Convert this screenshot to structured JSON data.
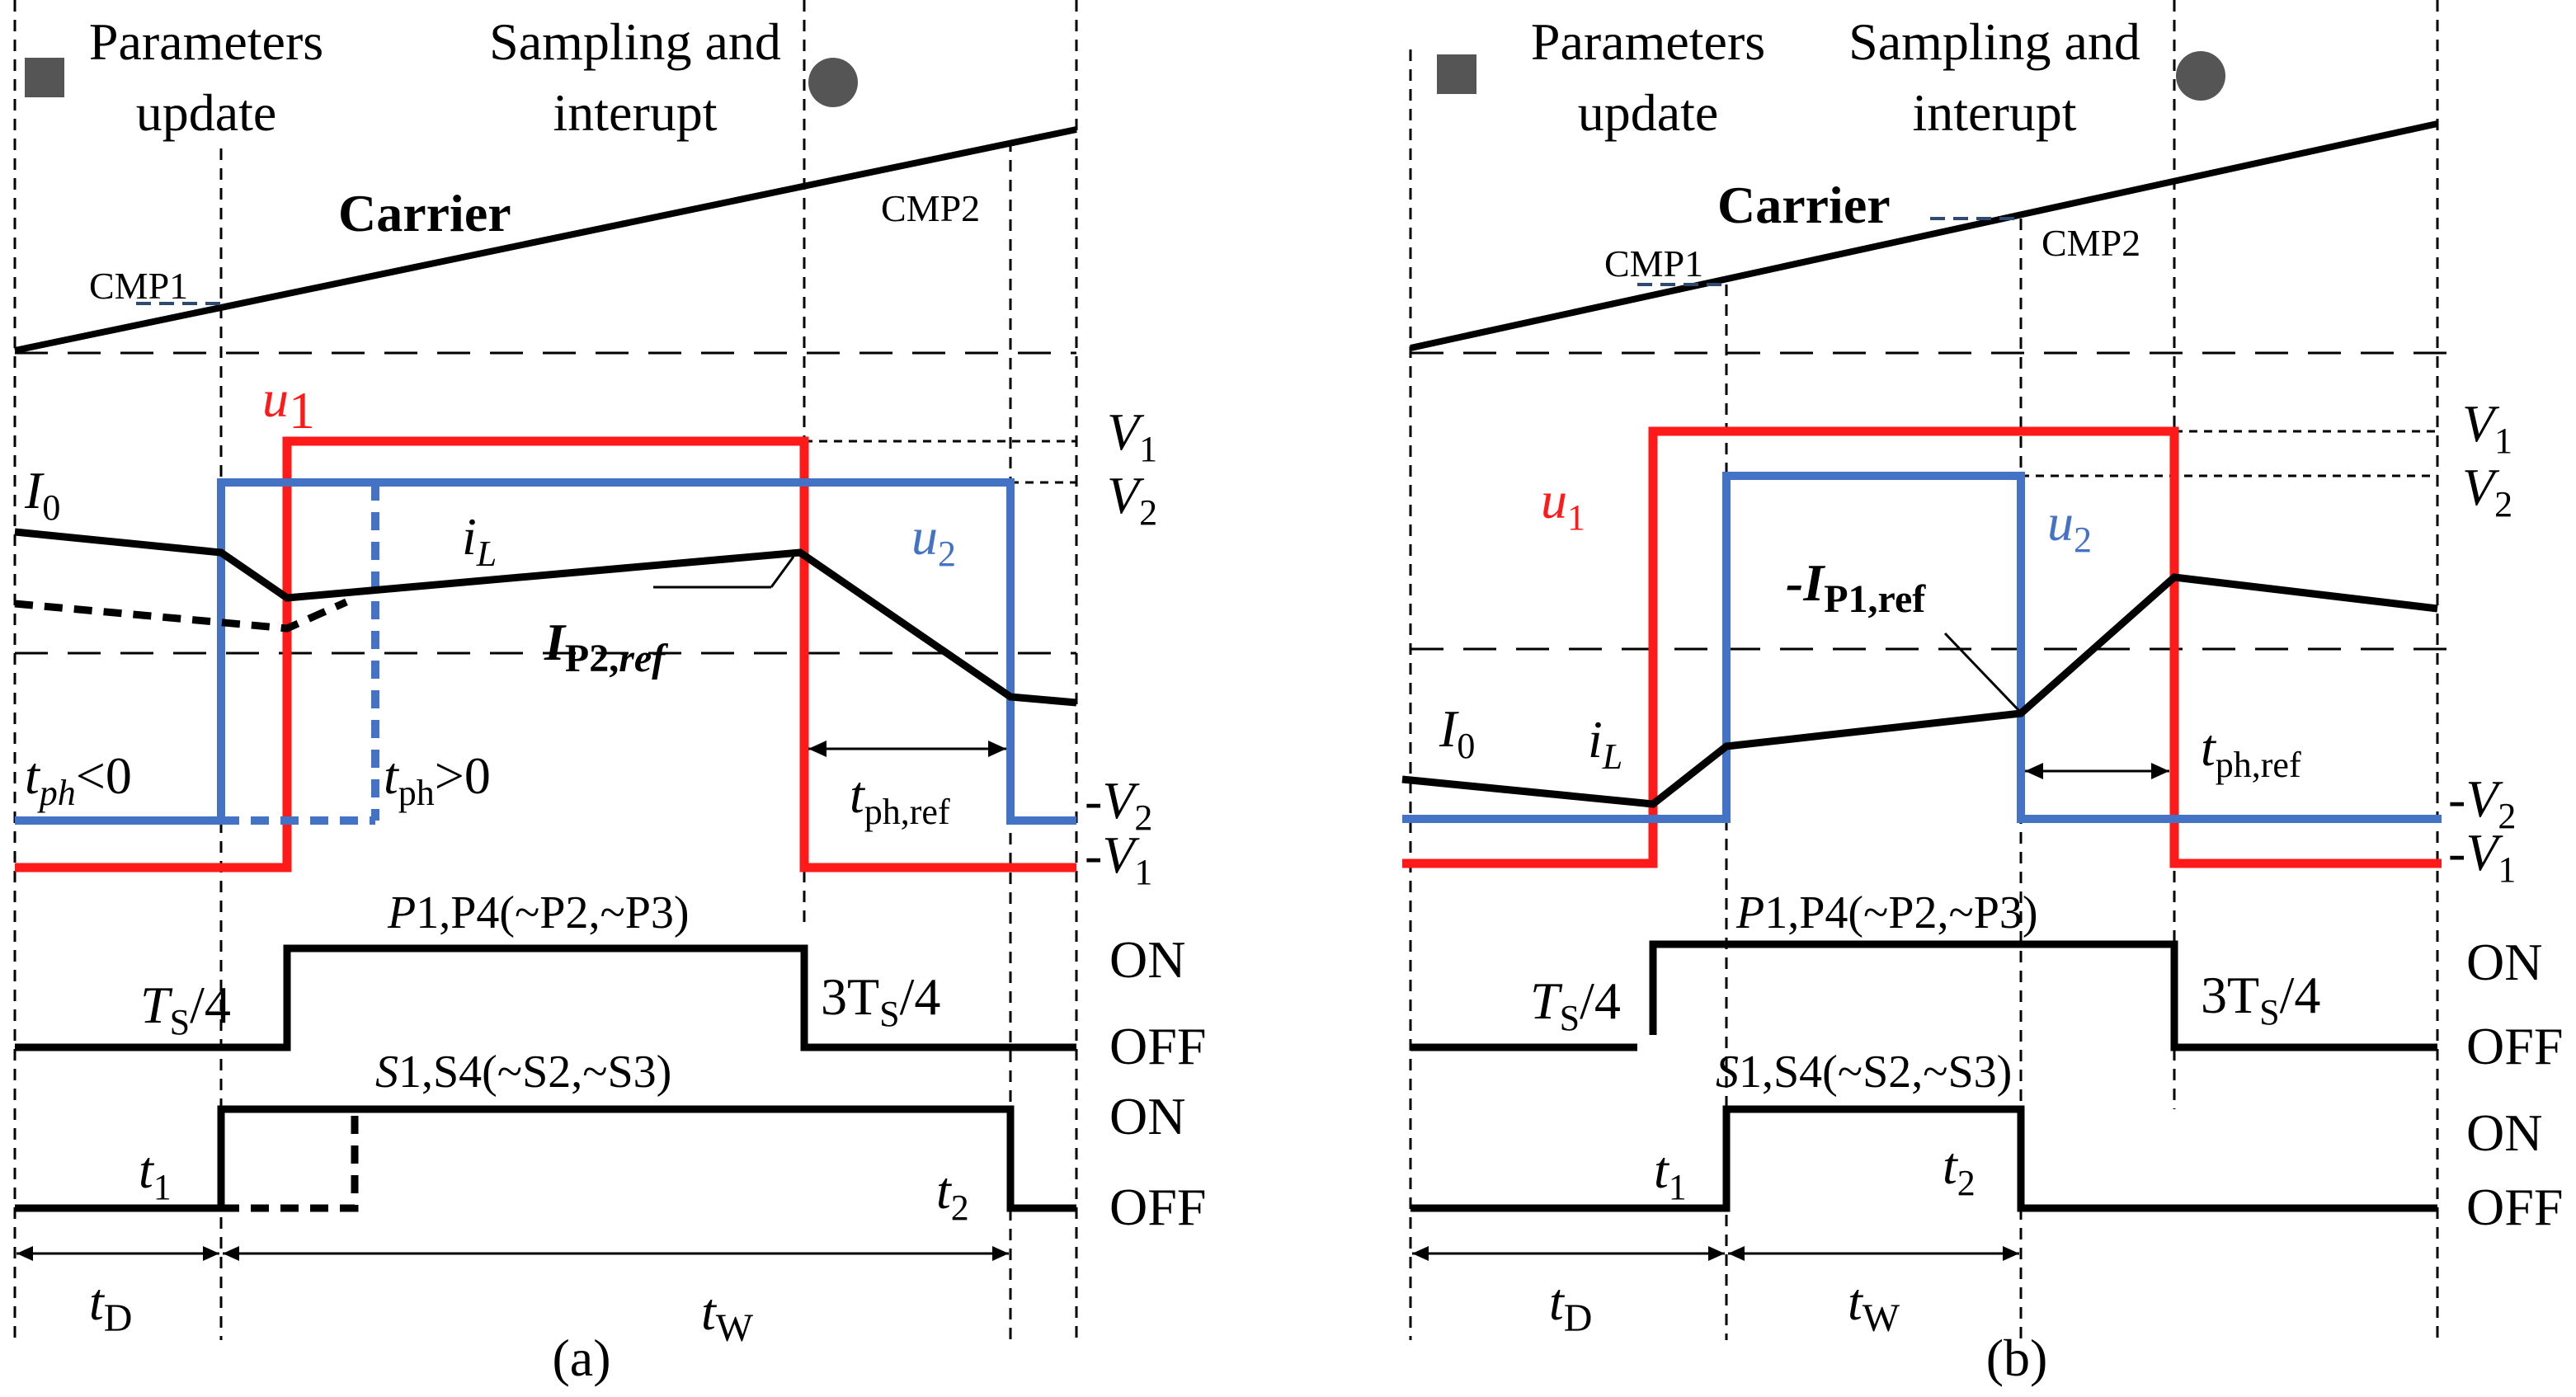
{
  "panels": [
    {
      "id": "a",
      "caption": "(a)",
      "params_label": [
        "Parameters",
        "update"
      ],
      "sampling_label": [
        "Sampling and",
        "interupt"
      ],
      "carrier_label": "Carrier",
      "cmp1_label": "CMP1",
      "cmp2_label": "CMP2",
      "u1_label": "u",
      "u1_sub": "1",
      "u2_label": "u",
      "u2_sub": "2",
      "I0_label": "I",
      "I0_sub": "0",
      "iL_label": "i",
      "iL_sub": "L",
      "ref_label": "I",
      "ref_sub": "P2,",
      "ref_sub2": "ref",
      "tph_neg": "<0",
      "tph_neg_t": "t",
      "tph_neg_sub": "ph",
      "tph_pos": ">0",
      "tph_pos_t": "t",
      "tph_pos_sub": "ph",
      "tph_ref_t": "t",
      "tph_ref_sub": "ph,ref",
      "V1": "V",
      "V1_sub": "1",
      "V2": "V",
      "V2_sub": "2",
      "negV2": "-V",
      "negV2_sub": "2",
      "negV1": "-V",
      "negV1_sub": "1",
      "P_label": "P",
      "P_text": "1,P4(~P2,~P3)",
      "S_text": "1,S4(~S2,~S3)",
      "Ts4": "T",
      "Ts4_sub": "S",
      "Ts4_tail": "/4",
      "threeTs4": "3T",
      "threeTs4_sub": "S",
      "threeTs4_tail": "/4",
      "on": "ON",
      "off": "OFF",
      "t1": "t",
      "t1_sub": "1",
      "t2": "t",
      "t2_sub": "2",
      "tD": "t",
      "tD_sub": "D",
      "tW": "t",
      "tW_sub": "W"
    },
    {
      "id": "b",
      "caption": "(b)",
      "params_label": [
        "Parameters",
        "update"
      ],
      "sampling_label": [
        "Sampling and",
        "interupt"
      ],
      "carrier_label": "Carrier",
      "cmp1_label": "CMP1",
      "cmp2_label": "CMP2",
      "u1_label": "u",
      "u1_sub": "1",
      "u2_label": "u",
      "u2_sub": "2",
      "I0_label": "I",
      "I0_sub": "0",
      "iL_label": "i",
      "iL_sub": "L",
      "ref_label": "-I",
      "ref_sub": "P1,ref",
      "tph_ref_t": "t",
      "tph_ref_sub": "ph,ref",
      "V1": "V",
      "V1_sub": "1",
      "V2": "V",
      "V2_sub": "2",
      "negV2": "-V",
      "negV2_sub": "2",
      "negV1": "-V",
      "negV1_sub": "1",
      "P_label": "P",
      "P_text": "1,P4(~P2,~P3)",
      "S_text": "1,S4(~S2,~S3)",
      "Ts4": "T",
      "Ts4_sub": "S",
      "Ts4_tail": "/4",
      "threeTs4": "3T",
      "threeTs4_sub": "S",
      "threeTs4_tail": "/4",
      "on": "ON",
      "off": "OFF",
      "t1": "t",
      "t1_sub": "1",
      "t2": "t",
      "t2_sub": "2",
      "tD": "t",
      "tD_sub": "D",
      "tW": "t",
      "tW_sub": "W"
    }
  ],
  "colors": {
    "u1": "#ff1a1a",
    "u2": "#4472c4",
    "iL": "#000000",
    "marker": "#555555"
  }
}
